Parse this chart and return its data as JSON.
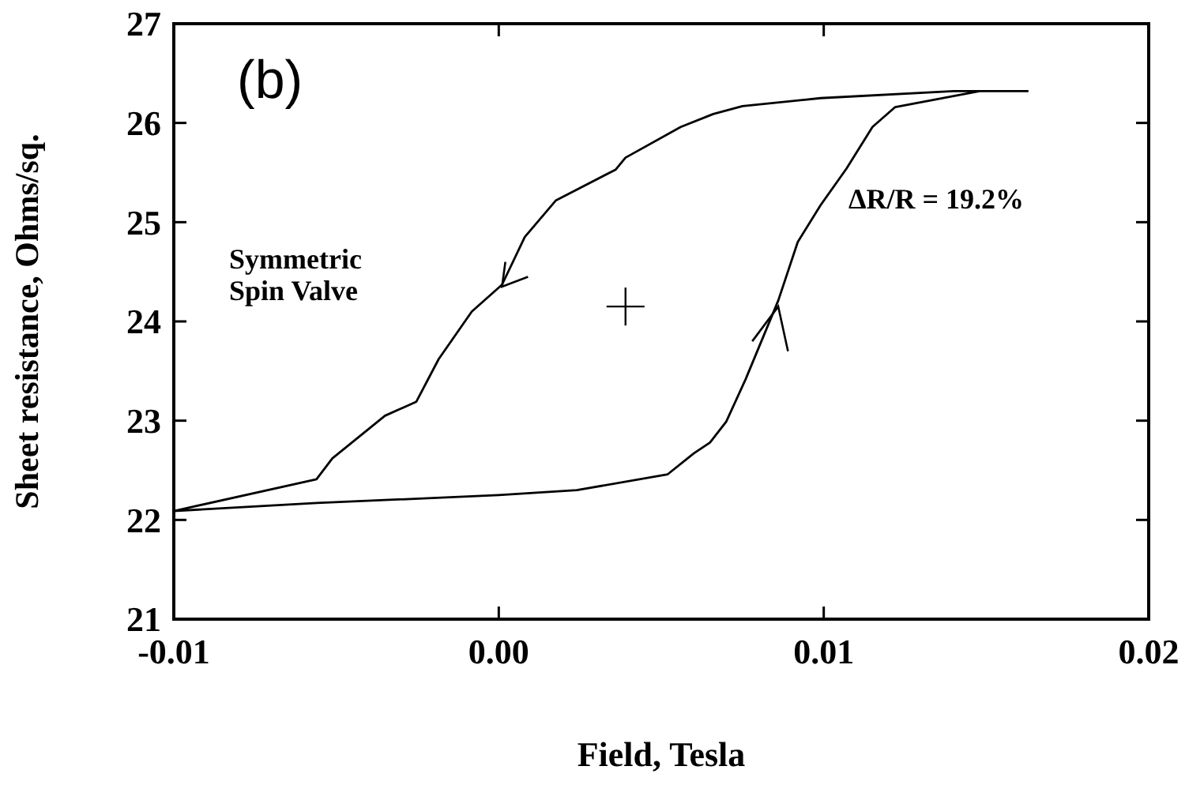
{
  "chart_data": {
    "type": "line",
    "xlabel": "Field, Tesla",
    "ylabel": "Sheet resistance, Ohms/sq.",
    "annotations": [
      "(b)",
      "Symmetric\nSpin Valve",
      "ΔR/R = 19.2%"
    ],
    "xlim": [
      -0.01,
      0.02
    ],
    "xticks": [
      {
        "value": -0.01,
        "label": "-0.01"
      },
      {
        "value": 0,
        "label": "0.00"
      },
      {
        "value": 0.01,
        "label": "0.01"
      },
      {
        "value": 0.02,
        "label": "0.02"
      }
    ],
    "ylim": [
      21,
      27
    ],
    "yticks": [
      21,
      22,
      23,
      24,
      25,
      26,
      27
    ],
    "grid": false,
    "marker": "none",
    "line_style": "solid",
    "series": [
      {
        "color": "#000000",
        "x": [
          0.0163,
          0.014,
          0.0099,
          0.0075,
          0.0066,
          0.0056,
          0.0039,
          0.0036,
          0.00176,
          0.0008,
          0.0001,
          -0.00083,
          -0.00185,
          -0.00254,
          -0.0035,
          -0.00512,
          -0.00561,
          -0.01,
          -0.0056,
          0,
          0.0024,
          0.0052,
          0.006,
          0.0065,
          0.007,
          0.0076,
          0.0086,
          0.0092,
          0.0099,
          0.0107,
          0.0115,
          0.0122,
          0.0148
        ],
        "values": [
          26.32,
          26.32,
          26.25,
          26.17,
          26.09,
          25.96,
          25.65,
          25.53,
          25.22,
          24.85,
          24.37,
          24.1,
          23.62,
          23.19,
          23.05,
          22.62,
          22.41,
          22.09,
          22.17,
          22.25,
          22.3,
          22.46,
          22.67,
          22.78,
          22.99,
          23.42,
          24.21,
          24.8,
          25.17,
          25.54,
          25.96,
          26.16,
          26.32
        ]
      }
    ]
  }
}
